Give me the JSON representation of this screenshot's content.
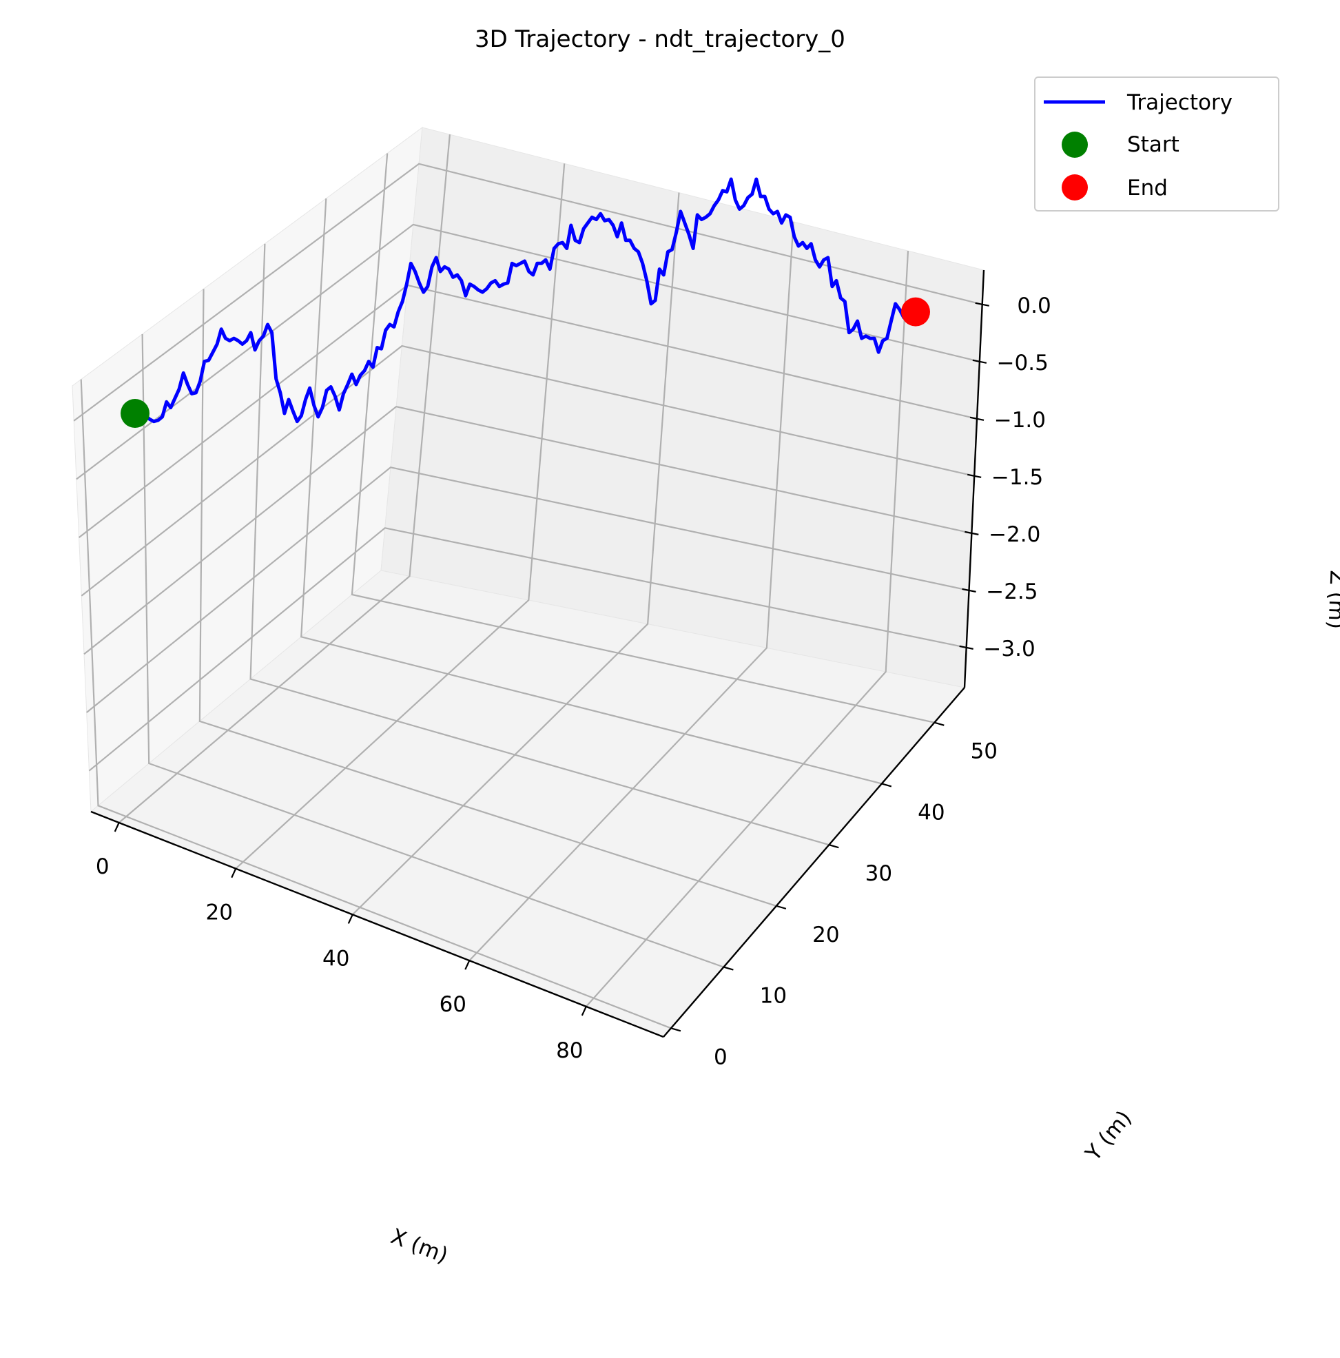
{
  "chart_data": {
    "type": "line",
    "title": "3D Trajectory - ndt_trajectory_0",
    "xlabel": "X (m)",
    "ylabel": "Y (m)",
    "zlabel": "Z (m)",
    "xticks": [
      0,
      20,
      40,
      60,
      80
    ],
    "yticks": [
      0,
      10,
      20,
      30,
      40,
      50
    ],
    "zticks": [
      "0.0",
      "−0.5",
      "−1.0",
      "−1.5",
      "−2.0",
      "−2.5",
      "−3.0"
    ],
    "grid": true,
    "legend": {
      "placement": "top-right",
      "entries": [
        {
          "name": "Trajectory",
          "color": "#0000ff",
          "marker": "line"
        },
        {
          "name": "Start",
          "color": "#008000",
          "marker": "circle"
        },
        {
          "name": "End",
          "color": "#ff0000",
          "marker": "circle"
        }
      ]
    },
    "colors": {
      "trajectory": "#0000ff",
      "start": "#008000",
      "end": "#ff0000",
      "pane": "#f2f2f2",
      "grid": "#b0b0b0"
    },
    "series": [
      {
        "name": "Trajectory",
        "z": [
          -1.15,
          -1.13,
          -1.1,
          -1.08,
          -1.09,
          -1.12,
          -1.25,
          -1.2,
          -1.28,
          -1.36,
          -1.5,
          -1.4,
          -1.32,
          -1.33,
          -1.43,
          -1.6,
          -1.61,
          -1.68,
          -1.75,
          -1.88,
          -1.8,
          -1.78,
          -1.8,
          -1.78,
          -1.75,
          -1.78,
          -1.85,
          -1.7,
          -1.78,
          -1.82,
          -1.92,
          -1.85,
          -1.45,
          -1.33,
          -1.15,
          -1.27,
          -1.17,
          -1.08,
          -1.13,
          -1.27,
          -1.37,
          -1.22,
          -1.12,
          -1.2,
          -1.35,
          -1.38,
          -1.3,
          -1.18,
          -1.32,
          -1.4,
          -1.49,
          -1.4,
          -1.48,
          -1.52,
          -1.6,
          -1.55,
          -1.72,
          -1.71,
          -1.87,
          -1.92,
          -1.9,
          -2.03,
          -2.12,
          -2.27,
          -2.45,
          -2.38,
          -2.28,
          -2.2,
          -2.25,
          -2.42,
          -2.5,
          -2.38,
          -2.42,
          -2.4,
          -2.33,
          -2.35,
          -2.3,
          -2.17,
          -2.27,
          -2.25,
          -2.22,
          -2.2,
          -2.23,
          -2.28,
          -2.3,
          -2.25,
          -2.27,
          -2.28,
          -2.45,
          -2.43,
          -2.45,
          -2.47,
          -2.38,
          -2.35,
          -2.45,
          -2.45,
          -2.48,
          -2.4,
          -2.58,
          -2.62,
          -2.63,
          -2.58,
          -2.78,
          -2.65,
          -2.63,
          -2.75,
          -2.8,
          -2.85,
          -2.83,
          -2.88,
          -2.82,
          -2.83,
          -2.78,
          -2.68,
          -2.8,
          -2.65,
          -2.65,
          -2.58,
          -2.55,
          -2.45,
          -2.3,
          -2.1,
          -2.13,
          -2.4,
          -2.35,
          -2.55,
          -2.57,
          -2.72,
          -2.9,
          -2.8,
          -2.7,
          -2.58,
          -2.87,
          -2.83,
          -2.85,
          -2.88,
          -2.95,
          -3.0,
          -3.08,
          -3.07,
          -3.18,
          -3.0,
          -2.92,
          -2.95,
          -3.02,
          -3.05,
          -3.18,
          -3.03,
          -3.03,
          -2.92,
          -2.88,
          -2.9,
          -2.8,
          -2.87,
          -2.85,
          -2.68,
          -2.6,
          -2.63,
          -2.58,
          -2.62,
          -2.48,
          -2.42,
          -2.48,
          -2.5,
          -2.25,
          -2.3,
          -2.15,
          -2.12,
          -1.85,
          -1.88,
          -1.95,
          -1.8,
          -1.82,
          -1.8,
          -1.8,
          -1.68,
          -1.78,
          -1.8,
          -1.95,
          -2.1,
          -2.05,
          -1.98,
          -2.03
        ]
      }
    ],
    "start": {
      "name": "Start",
      "z": -1.15
    },
    "end": {
      "name": "End",
      "z": -2.03
    }
  }
}
